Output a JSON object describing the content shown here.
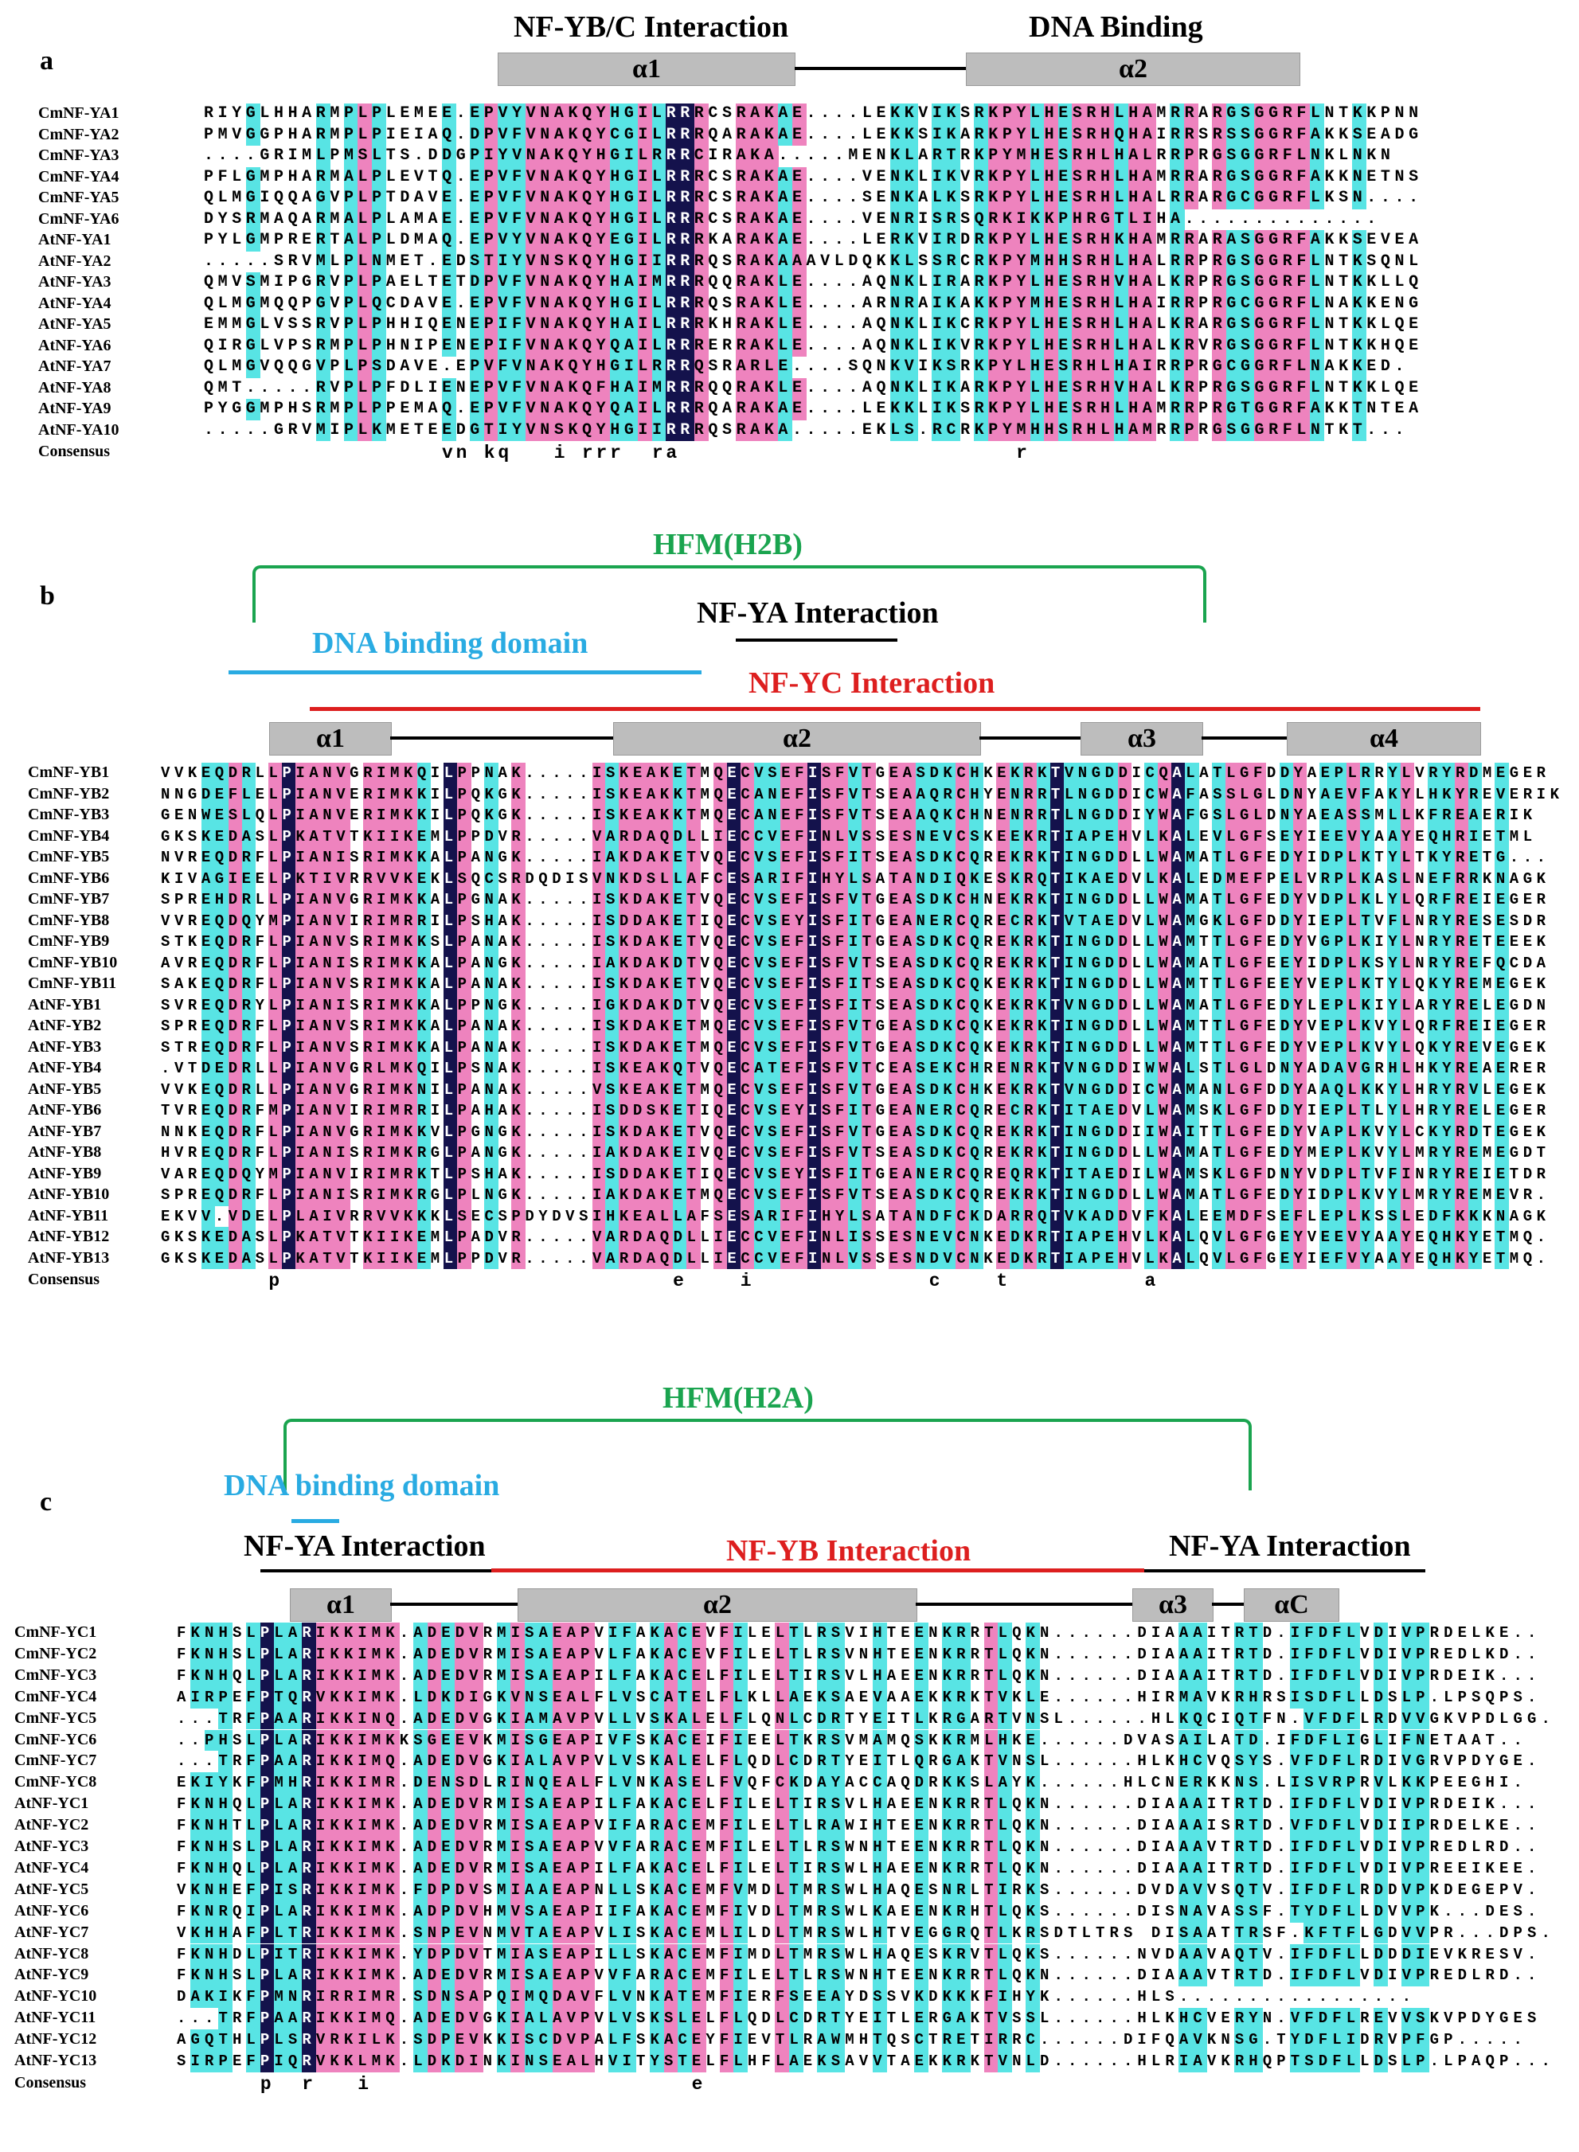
{
  "colors": {
    "identical": "#14124c",
    "high_similarity": "#ee83be",
    "low_similarity": "#58e4e4",
    "green": "#1aa44f",
    "red": "#dd1f1f",
    "blue": "#29abe2"
  },
  "panel_a": {
    "letter": "a",
    "title_left": "NF-YB/C Interaction",
    "title_right": "DNA Binding",
    "helices": [
      "α1",
      "α2"
    ],
    "consensus_label": "Consensus",
    "consensus": "                 vn kq   i rrr  ra                        r",
    "rows": [
      {
        "name": "CmNF-YA1",
        "seq": "RIYGLHHARMPLPLEMEE.EPVYVNAKQYHGILRRRCSRAKAE....LEKKVIKSRKPYLHESRHLHAMRRARGSGGRFLNTKKPNN"
      },
      {
        "name": "CmNF-YA2",
        "seq": "PMVGGPHARMPLPIEIAQ.DPVFVNAKQYCGILRRRQARAKAE....LEKKSIKARKPYLHESRHQHAIRRSRSSGGRFAKKSEADG"
      },
      {
        "name": "CmNF-YA3",
        "seq": "....GRIMLPMSLTS.DDGPIYVNAKQYHGILRRRCIRAKA.....MENKLARTRKPYMHESRHLHALRRPRGSGGRFLNKLNKN"
      },
      {
        "name": "CmNF-YA4",
        "seq": "PFLGMPHARMALPLEVTQ.EPVFVNAKQYHGILRRRCSRAKAE....VENKLIKVRKPYLHESRHLHAMRRARGSGGRFAKKNETNS"
      },
      {
        "name": "CmNF-YA5",
        "seq": "QLMGIQQAGVPLPTDAVE.EPVFVNAKQYHGILRRRCSRAKAE....SENKALKSRKPYLHESRHLHALRRARGCGGRFLKSN...."
      },
      {
        "name": "CmNF-YA6",
        "seq": "DYSRMAQARMALPLAMAE.EPVFVNAKQYHGILRRRCSRAKAE....VENRISRSQRKIKKPHRGTLIHA.............."
      },
      {
        "name": "AtNF-YA1",
        "seq": "PYLGMPRERTALPLDMAQ.EPVYVNAKQYEGILRRRKARAKAE....LERKVIRDRKPYLHESRHKHAMRRARASGGRFAKKSEVEA"
      },
      {
        "name": "AtNF-YA2",
        "seq": ".....SRVMLPLNMET.EDSTIYVNSKQYHGIIRRRQSRAKAAAVLDQKKLSSRCRKPYMHHSRHLHALRRPRGSGGRFLNTKSQNL"
      },
      {
        "name": "AtNF-YA3",
        "seq": "QMVSMIPGRVPLPAELTETDPVFVNAKQYHAIMRRRQQRAKLE....AQNKLIRARKPYLHESRHVHALKRPRGSGGRFLNTKKLLQ"
      },
      {
        "name": "AtNF-YA4",
        "seq": "QLMGMQQPGVPLQCDAVE.EPVFVNAKQYHGILRRRQSRAKLE....ARNRAIKAKKPYMHESRHLHAIRRPRGCGGRFLNAKKENG"
      },
      {
        "name": "AtNF-YA5",
        "seq": "EMMGLVSSRVPLPHHIQENEPIFVNAKQYHAILRRRKHRAKLE....AQNKLIKCRKPYLHESRHLHALKRARGSGGRFLNTKKLQE"
      },
      {
        "name": "AtNF-YA6",
        "seq": "QIRGLVPSRMPLPHNIPENEPIFVNAKQYQAILRRRERRAKLE....AQNKLIKVRKPYLHESRHLHALKRVRGSGGRFLNTKKHQE"
      },
      {
        "name": "AtNF-YA7",
        "seq": "QLMGVQQGVPLPSDAVE.EPVFVNAKQYHGILRRRQSRARLE....SQNKVIKSRKPYLHESRHLHAIRRPRGCGGRFLNAKKED."
      },
      {
        "name": "AtNF-YA8",
        "seq": "QMT.....RVPLPFDLIENEPVFVNAKQFHAIMRRRQQRAKLE....AQNKLIKARKPYLHESRHVHALKRPRGSGGRFLNTKKLQE"
      },
      {
        "name": "AtNF-YA9",
        "seq": "PYGGMPHSRMPLPPEMAQ.EPVFVNAKQYQAILRRRQARAKAE....LEKKLIKSRKPYLHESRHLHAMRRPRGTGGRFAKKTNTEA"
      },
      {
        "name": "AtNF-YA10",
        "seq": ".....GRVMIPLKMETEEDGTIYVNSKQYHGIIRRRQSRAKA.....EKLS.RCRKPYMHHSRHLHAMRRPRGSGGRFLNTKT..."
      }
    ]
  },
  "panel_b": {
    "letter": "b",
    "hfm": "HFM(H2B)",
    "nfya": "NF-YA Interaction",
    "dna": "DNA binding domain",
    "nfyc": "NF-YC Interaction",
    "helices": [
      "α1",
      "α2",
      "α3",
      "α4"
    ],
    "consensus_label": "Consensus",
    "consensus": "        p                             e    i             c    t          a",
    "rows": [
      {
        "name": "CmNF-YB1",
        "seq": "VVKEQDRLLPIANVGRIMKQILPPNAK.....ISKEAKETMQECVSEFISFVTGEASDKCHKEKRKTVNGDDICQALATLGFDDYAEPLRRYLVRYRDMEGER"
      },
      {
        "name": "CmNF-YB2",
        "seq": "NNGDEFLELPIANVERIMKKILPQKGK.....ISKEAKKTMQECANEFISFVTSEAAQRCHYENRRTLNGDDICWAFASSLGLDNYAEVFAKYLHKYREVERIK"
      },
      {
        "name": "CmNF-YB3",
        "seq": "GENWESLQLPIANVERIMKKILPQKGK.....ISKEAKKTMQECANEFISFVTSEAAQKCHNENRRTLNGDDIYWAFGSLGLDNYAEASSMLLKFREAERIK"
      },
      {
        "name": "CmNF-YB4",
        "seq": "GKSKEDASLPKATVTKIIKEMLPPDVR.....VARDAQDLLIECCVEFINLVSSESNEVCSKEEKRTIAPEHVLKALEVLGFSEYIEEVYAAYEQHRIETML"
      },
      {
        "name": "CmNF-YB5",
        "seq": "NVREQDRFLPIANISRIMKKALPANGK.....IAKDAKETVQECVSEFISFITSEASDKCQREKRKTINGDDLLWAMATLGFEDYIDPLKTYLTKYRETG..."
      },
      {
        "name": "CmNF-YB6",
        "seq": "KIVAGIEELPKTIVRRVVKEKLSQCSRDQDISVNKDSLLAFCESARIFIHYLSATANDIQKESKRQTIKAEDVLKALEDMEFPELVRPLKASLNEFRRKNAGK"
      },
      {
        "name": "CmNF-YB7",
        "seq": "SPREHDRLLPIANVGRIMKKALPGNAK.....ISKDAKETVQECVSEFISFVTGEASDKCHNEKRKTINGDDLLWAMATLGFEDYVDPLKLYLQRFREIEGER"
      },
      {
        "name": "CmNF-YB8",
        "seq": "VVREQDQYMPIANVIRIMRRILPSHAK.....ISDDAKETIQECVSEYISFITGEANERCQRECRKTVTAEDVLWAMGKLGFDDYIEPLTVFLNRYRESESDR"
      },
      {
        "name": "CmNF-YB9",
        "seq": "STKEQDRFLPIANVSRIMKKSLPANAK.....ISKDAKETVQECVSEFISFITGEASDKCQREKRKTINGDDLLWAMTTLGFEDYVGPLKIYLNRYRETEEEK"
      },
      {
        "name": "CmNF-YB10",
        "seq": "AVREQDRFLPIANISRIMKKALPANGK.....IAKDAKDTVQECVSEFISFVTSEASDKCQREKRKTINGDDLLWAMATLGFEEYIDPLKSYLNRYREFQCDA"
      },
      {
        "name": "CmNF-YB11",
        "seq": "SAKEQDRFLPIANVSRIMKKALPANAK.....ISKDAKETVQECVSEFISFITSEASDKCQKEKRKTINGDDLLWAMTTLGFEEYVEPLKTYLQKYREMEGEK"
      },
      {
        "name": "AtNF-YB1",
        "seq": "SVREQDRYLPIANISRIMKKALPPNGK.....IGKDAKDTVQECVSEFISFITSEASDKCQKEKRKTVNGDDLLWAMATLGFEDYLEPLKIYLARYRELEGDN"
      },
      {
        "name": "AtNF-YB2",
        "seq": "SPREQDRFLPIANVSRIMKKALPANAK.....ISKDAKETMQECVSEFISFVTGEASDKCQKEKRKTINGDDLLWAMTTLGFEDYVEPLKVYLQRFREIEGER"
      },
      {
        "name": "AtNF-YB3",
        "seq": "STREQDRFLPIANVSRIMKKALPANAK.....ISKDAKETMQECVSEFISFVTGEASDKCQKEKRKTINGDDLLWAMTTLGFEDYVEPLKVYLQKYREVEGEK"
      },
      {
        "name": "AtNF-YB4",
        "seq": ".VTDEDRLLPIANVGRLMKQILPSNAK.....ISKEAKQTVQECATEFISFVTCEASEKCHRENRKTVNGDDIWWALSTLGLDNYADAVGRHLHKYREAERER"
      },
      {
        "name": "AtNF-YB5",
        "seq": "VVKEQDRLLPIANVGRIMKNILPANAK.....VSKEAKETMQECVSEFISFVTGEASDKCHKEKRKTVNGDDICWAMANLGFDDYAAQLKKYLHRYRVLEGEK"
      },
      {
        "name": "AtNF-YB6",
        "seq": "TVREQDRFMPIANVIRIMRRILPAHAK.....ISDDSKETIQECVSEYISFITGEANERCQRECRKTITAEDVLWAMSKLGFDDYIEPLTLYLHRYRELEGER"
      },
      {
        "name": "AtNF-YB7",
        "seq": "NNKEQDRFLPIANVGRIMKKVLPGNGK.....ISKDAKETVQECVSEFISFVTGEASDKCQREKRKTINGDDIIWAITTLGFEDYVAPLKVYLCKYRDTEGEK"
      },
      {
        "name": "AtNF-YB8",
        "seq": "HVREQDRFLPIANISRIMKRGLPANGK.....IAKDAKEIVQECVSEFISFVTSEASDKCQREKRKTINGDDLLWAMATLGFEDYMEPLKVYLMRYREMEGDT"
      },
      {
        "name": "AtNF-YB9",
        "seq": "VAREQDQYMPIANVIRIMRKTLPSHAK.....ISDDAKETIQECVSEYISFITGEANERCQREQRKTITAEDILWAMSKLGFDNYVDPLTVFINRYREIETDR"
      },
      {
        "name": "AtNF-YB10",
        "seq": "SPREQDRFLPIANISRIMKRGLPLNGK.....IAKDAKETMQECVSEFISFVTSEASDKCQREKRKTINGDDLLWAMATLGFEDYIDPLKVYLMRYREMEVR."
      },
      {
        "name": "AtNF-YB11",
        "seq": "EKVV.VDELPLAIVRRVVKKKLSECSPDYDVSIHKEALLAFSESARIFIHYLSATANDFCKDARRQTVKADDVFKALEEMDFSEFLEPLKSSLEDFKKKNAGK"
      },
      {
        "name": "AtNF-YB12",
        "seq": "GKSKEDASLPKATVTKIIKEMLPADVR.....VARDAQDLLIECCVEFINLISSESNEVCNKEDKRTIAPEHVLKALQVLGFGEYVEEVYAAYEQHKYETMQ."
      },
      {
        "name": "AtNF-YB13",
        "seq": "GKSKEDASLPKATVTKIIKEMLPPDVR.....VARDAQDLLIECCVEFINLVSSESNDVCNKEDKRTIAPEHVLKALQVLGFGEYIEFVYAAYEQHKYETMQ."
      }
    ]
  },
  "panel_c": {
    "letter": "c",
    "hfm": "HFM(H2A)",
    "dna": "DNA binding domain",
    "nfya_left": "NF-YA Interaction",
    "nfyb": "NF-YB Interaction",
    "nfya_right": "NF-YA Interaction",
    "helices": [
      "α1",
      "α2",
      "α3",
      "αC"
    ],
    "consensus_label": "Consensus",
    "consensus": "      p  r   i                       e",
    "rows": [
      {
        "name": "CmNF-YC1",
        "seq": "FKNHSLPLARIKKIMK.ADEDVRMISAEAPVIFAKACEVFILELTLRSVIHTEENKRRTLQKN......DIAAAITRTD.IFDFLVDIVPRDELKE.."
      },
      {
        "name": "CmNF-YC2",
        "seq": "FKNHSLPLARIKKIMK.ADEDVRMISAEAPVLFAKACEVFILELTLRSVNHTEENKRRTLQKN......DIAAAITRTD.IFDFLVDIVPREDLKD.."
      },
      {
        "name": "CmNF-YC3",
        "seq": "FKNHQLPLARIKKIMK.ADEDVRMISAEAPILFAKACELFILELTIRSVLHAEENKRRTLQKN......DIAAAITRTD.IFDFLVDIVPRDEIK..."
      },
      {
        "name": "CmNF-YC4",
        "seq": "AIRPEFPTQRVKKIMK.LDKDIGKVNSEALFLVSCATELFLKLLAEKSAEVAAEKKRKTVKLE......HIRMAVKRHRSISDFLLDSLP.LPSQPS."
      },
      {
        "name": "CmNF-YC5",
        "seq": "...TRFPAARIKKINQ.ADEDVGKIAMAVPVLLVSKALELFLQNLCDRTYEITLKRGARTVNSL......HLKQCIQTFN.VFDFLRDVVGKVPDLGG."
      },
      {
        "name": "CmNF-YC6",
        "seq": "..PHSLPLARIKKIMKKSGEEVKMISGEAPIVFSKACEIFIEELTKRSVMAMQSKKRMLHKE......DVASAILATD.IFDFLIGLIFNETAAT.."
      },
      {
        "name": "CmNF-YC7",
        "seq": "...TRFPAARIKKIMQ.ADEDVGKIALAVPVLVSKALELFLQDLCDRTYEITLQRGAKTVNSL......HLKHCVQSYS.VFDFLRDIVGRVPDYGE."
      },
      {
        "name": "CmNF-YC8",
        "seq": "EKIYKFPMHRIKKIMR.DENSDLRINQEALFLVNKASELFVQFCKDAYACCAQDRKKSLAYK......HLCNERKKNS.LISVRPRVLKKPEEGHI."
      },
      {
        "name": "AtNF-YC1",
        "seq": "FKNHQLPLARIKKIMK.ADEDVRMISAEAPILFAKACELFILELTIRSVLHAEENKRRTLQKN......DIAAAITRTD.IFDFLVDIVPRDEIK..."
      },
      {
        "name": "AtNF-YC2",
        "seq": "FKNHTLPLARIKKIMK.ADEDVRMISAEAPVIFARACEMFILELTLRAWIHTEENKRRTLQKN......DIAAAISRTD.VFDFLVDIIPRDELKE.."
      },
      {
        "name": "AtNF-YC3",
        "seq": "FKNHSLPLARIKKIMK.ADEDVRMISAEAPVVFARACEMFILELTLRSWNHTEENKRRTLQKN......DIAAAVTRTD.IFDFLVDIVPREDLRD.."
      },
      {
        "name": "AtNF-YC4",
        "seq": "FKNHQLPLARIKKIMK.ADEDVRMISAEAPILFAKACELFILELTIRSWLHAEENKRRTLQKN......DIAAAITRTD.IFDFLVDIVPREEIKEE."
      },
      {
        "name": "AtNF-YC5",
        "seq": "VKNHEFPISRIKKIMK.FDPDVSMIAAEAPNLLSKACEMFVMDLTMRSWLHAQESNRLTIRKS......DVDAVVSQTV.IFDFLRDDVPKDEGEPV."
      },
      {
        "name": "AtNF-YC6",
        "seq": "FKNRQIPLARIKKIMK.ADPDVHMVSAEAPIIFAKACEMFIVDLTMRSWLKAEENKRHTLQKS......DISNAVASSF.TYDFLLDVVPK...DES."
      },
      {
        "name": "AtNF-YC7",
        "seq": "VKHHAFPLTRIKKIMK.SNPEVNMVTAEAPVLISKACEMLILDLTMRSWLHTVEGGRQTLKRSDTLTRS DISAATTRSF.KFTFLGDVVPR...DPS."
      },
      {
        "name": "AtNF-YC8",
        "seq": "FKNHDLPITRIKKIMK.YDPDVTMIASEAPILLSKACEMFIMDLTMRSWLHAQESKRVTLQKS......NVDAAVAQTV.IFDFLLDDDIEVKRESV."
      },
      {
        "name": "AtNF-YC9",
        "seq": "FKNHSLPLARIKKIMK.ADEDVRMISAEAPVVFARACEMFILELTLRSWNHTEENKRRTLQKN......DIAAAVTRTD.IFDFLVDIVPREDLRD.."
      },
      {
        "name": "AtNF-YC10",
        "seq": "DAKIKFPMNRIRRIMR.SDNSAPQIMQDAVFLVNKATEMFIERFSEEAYDSSVKDKKKFIHYK......HLS................."
      },
      {
        "name": "AtNF-YC11",
        "seq": "...TRFPAARIKKIMQ.ADEDVGKIALAVPVLVSKSLELFLQDLCDRTYEITLERGAKTVSSL......HLKHCVERYN.VFDFLREVVSKVPDYGES"
      },
      {
        "name": "AtNF-YC12",
        "seq": "AGQTHLPLSRVRKILK.SDPEVKKISCDVPALFSKACEYFIEVTLRAWMHTQSCTRETIRRC......DIFQAVKNSG.TYDFLIDRVPFGP....."
      },
      {
        "name": "AtNF-YC13",
        "seq": "SIRPEFPIQRVKKLMK.LDKDINKINSEALHVITYSTELFLHFLAEKSAVVTAEKKRKTVNLD......HLRIAVKRHQPTSDFLLDSLP.LPAQP..."
      }
    ]
  }
}
